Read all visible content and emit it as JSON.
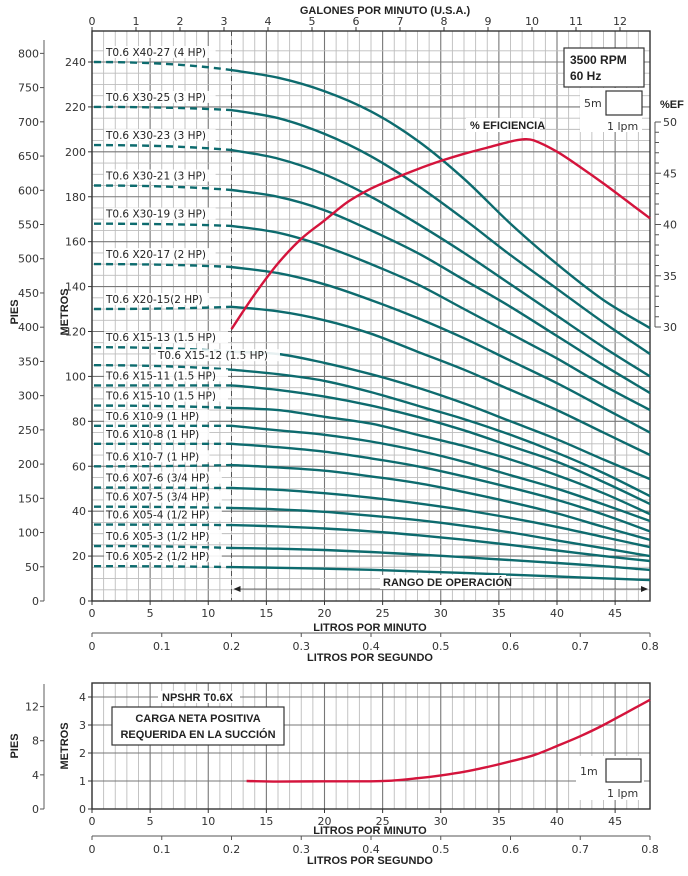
{
  "chart_data": [
    {
      "type": "line",
      "title": "",
      "top_axis": {
        "label": "GALONES POR MINUTO (U.S.A.)",
        "ticks": [
          "0",
          "1",
          "2",
          "3",
          "4",
          "5",
          "6",
          "7",
          "8",
          "9",
          "10",
          "11",
          "12"
        ],
        "range": [
          0,
          12.68
        ]
      },
      "xlabel": "LITROS POR MINUTO",
      "xticks": [
        "0",
        "5",
        "10",
        "15",
        "20",
        "25",
        "30",
        "35",
        "40",
        "45"
      ],
      "xlim": [
        0,
        48
      ],
      "secondary_xlabel": "LITROS POR SEGUNDO",
      "secondary_xticks": [
        "0",
        "0.1",
        "0.2",
        "0.3",
        "0.4",
        "0.5",
        "0.6",
        "0.7",
        "0.8"
      ],
      "ylabel": "METROS",
      "yticks": [
        "0",
        "20",
        "40",
        "60",
        "80",
        "100",
        "120",
        "140",
        "160",
        "180",
        "200",
        "220",
        "240"
      ],
      "ylim": [
        0,
        248
      ],
      "ylabel_feet": "PIES",
      "yticks_feet": [
        "0",
        "50",
        "100",
        "150",
        "200",
        "250",
        "300",
        "350",
        "400",
        "450",
        "500",
        "550",
        "600",
        "650",
        "700",
        "750",
        "800"
      ],
      "y2label": "%EF",
      "y2ticks": [
        "30",
        "35",
        "40",
        "45",
        "50"
      ],
      "y2lim": [
        30,
        50
      ],
      "grid": true,
      "info_box": {
        "line1": "3500 RPM",
        "line2": "60 Hz"
      },
      "scale_box": {
        "vertical": "5m",
        "horizontal": "1 lpm"
      },
      "operating_range_label": "RANGO DE OPERACIÓN",
      "operating_range": [
        12,
        48
      ],
      "efficiency_label": "% EFICIENCIA",
      "efficiency": {
        "x": [
          12,
          14,
          16,
          18,
          20,
          22,
          24,
          26,
          28,
          30,
          32,
          34,
          36,
          37,
          38,
          40,
          42,
          44,
          46,
          48
        ],
        "values": [
          29.8,
          33.2,
          36.2,
          38.6,
          40.4,
          42.2,
          43.5,
          44.5,
          45.4,
          46.2,
          46.9,
          47.5,
          48.1,
          48.3,
          48.2,
          47.1,
          45.6,
          44.0,
          42.3,
          40.6
        ]
      },
      "series": [
        {
          "name": "T0.6 X40-27 (4 HP)",
          "shutoff": 240,
          "x": [
            12,
            16,
            20,
            24,
            28,
            32,
            36,
            40,
            44,
            48
          ],
          "values": [
            236.4,
            233,
            227,
            218,
            205,
            188,
            168,
            150,
            134,
            121.5
          ]
        },
        {
          "name": "T0.6 X30-25 (3 HP)",
          "shutoff": 220,
          "x": [
            12,
            16,
            20,
            24,
            28,
            32,
            36,
            40,
            44,
            48
          ],
          "values": [
            218.6,
            215,
            208,
            198,
            185,
            170,
            154,
            139,
            124,
            110
          ]
        },
        {
          "name": "T0.6 X30-23 (3 HP)",
          "shutoff": 203,
          "x": [
            12,
            16,
            20,
            24,
            28,
            32,
            36,
            40,
            44,
            48
          ],
          "values": [
            200.8,
            197,
            190,
            180,
            168,
            155,
            141,
            127,
            113,
            100
          ]
        },
        {
          "name": "T0.6 X30-21 (3 HP)",
          "shutoff": 185,
          "x": [
            12,
            16,
            20,
            24,
            28,
            32,
            36,
            40,
            44,
            48
          ],
          "values": [
            183,
            180,
            174,
            165,
            155,
            143,
            131,
            118,
            105,
            92.6
          ]
        },
        {
          "name": "T0.6 X30-19 (3 HP)",
          "shutoff": 168,
          "x": [
            12,
            16,
            20,
            24,
            28,
            32,
            36,
            40,
            44,
            48
          ],
          "values": [
            167,
            164,
            158,
            150,
            141,
            130,
            119,
            108,
            96,
            85
          ]
        },
        {
          "name": "T0.6 X20-17 (2 HP)",
          "shutoff": 150,
          "x": [
            12,
            16,
            20,
            24,
            28,
            32,
            36,
            40,
            44,
            48
          ],
          "values": [
            148.7,
            146,
            141,
            134,
            126,
            117,
            107,
            97,
            86,
            75
          ]
        },
        {
          "name": "T0.6 X20-15(2 HP)",
          "shutoff": 130,
          "x": [
            12,
            16,
            20,
            24,
            28,
            32,
            36,
            40,
            44,
            48
          ],
          "values": [
            131,
            129,
            125,
            119,
            111,
            103,
            94,
            85,
            75,
            65
          ]
        },
        {
          "name": "T0.6 X15-13 (1.5 HP)",
          "shutoff": 113,
          "x": [
            12,
            16,
            20,
            24,
            28,
            32,
            36,
            40,
            44,
            48
          ],
          "values": [
            111,
            110,
            106,
            101,
            95,
            88,
            80,
            72,
            63,
            54.3
          ]
        },
        {
          "name": "T0.6 X15-12 (1.5 HP)",
          "shutoff": 105,
          "x": [
            12,
            16,
            20,
            24,
            28,
            32,
            36,
            40,
            44,
            48
          ],
          "values": [
            103,
            101,
            98,
            93,
            87,
            81,
            74,
            66,
            57,
            46.7
          ]
        },
        {
          "name": "T0.6 X15-11 (1.5 HP)",
          "shutoff": 96,
          "x": [
            12,
            16,
            20,
            24,
            28,
            32,
            36,
            40,
            44,
            48
          ],
          "values": [
            96,
            94,
            91,
            87,
            82,
            76,
            69,
            62,
            53,
            43.2
          ]
        },
        {
          "name": "T0.6 X15-10 (1.5 HP)",
          "shutoff": 87,
          "x": [
            12,
            16,
            20,
            24,
            28,
            32,
            36,
            40,
            44,
            48
          ],
          "values": [
            86,
            85,
            82,
            79,
            74,
            69,
            63,
            56,
            48,
            38.7
          ]
        },
        {
          "name": "T0.6 X10-9 (1 HP)",
          "shutoff": 78,
          "x": [
            12,
            16,
            20,
            24,
            28,
            32,
            36,
            40,
            44,
            48
          ],
          "values": [
            78,
            76,
            74,
            71,
            67,
            62,
            56,
            50,
            43,
            35.6
          ]
        },
        {
          "name": "T0.6 X10-8 (1 HP)",
          "shutoff": 70,
          "x": [
            12,
            16,
            20,
            24,
            28,
            32,
            36,
            40,
            44,
            48
          ],
          "values": [
            70,
            68.5,
            66.5,
            63.5,
            60,
            55.5,
            50.5,
            45,
            38.5,
            31
          ]
        },
        {
          "name": "T0.6 X10-7 (1 HP)",
          "shutoff": 60,
          "x": [
            12,
            16,
            20,
            24,
            28,
            32,
            36,
            40,
            44,
            48
          ],
          "values": [
            60.5,
            59.5,
            58,
            55.5,
            52.5,
            48.5,
            44,
            39,
            33,
            27.2
          ]
        },
        {
          "name": "T0.6 X07-6 (3/4 HP)",
          "shutoff": 50.5,
          "x": [
            12,
            16,
            20,
            24,
            28,
            32,
            36,
            40,
            44,
            48
          ],
          "values": [
            50.3,
            49.5,
            48,
            46,
            43.5,
            40.5,
            37,
            33,
            28.5,
            24
          ]
        },
        {
          "name": "T0.6 X07-5 (3/4 HP)",
          "shutoff": 42,
          "x": [
            12,
            16,
            20,
            24,
            28,
            32,
            36,
            40,
            44,
            48
          ],
          "values": [
            41.4,
            40.8,
            39.7,
            38,
            36,
            33.5,
            30.5,
            27,
            23.5,
            20
          ]
        },
        {
          "name": "T0.6 X05-4 (1/2 HP)",
          "shutoff": 34,
          "x": [
            12,
            16,
            20,
            24,
            28,
            32,
            36,
            40,
            44,
            48
          ],
          "values": [
            33.8,
            33.2,
            32.3,
            31,
            29.3,
            27.3,
            25,
            22.5,
            20,
            17.8
          ]
        },
        {
          "name": "T0.6 X05-3 (1/2 HP)",
          "shutoff": 24.5,
          "x": [
            12,
            16,
            20,
            24,
            28,
            32,
            36,
            40,
            44,
            48
          ],
          "values": [
            23.6,
            23.3,
            22.7,
            21.8,
            20.7,
            19.5,
            18.2,
            16.9,
            15.5,
            13.8
          ]
        },
        {
          "name": "T0.6 X05-2 (1/2 HP)",
          "shutoff": 15.5,
          "x": [
            12,
            16,
            20,
            24,
            28,
            32,
            36,
            40,
            44,
            48
          ],
          "values": [
            15.1,
            14.8,
            14.4,
            13.9,
            13.2,
            12.5,
            11.7,
            10.9,
            10.1,
            9.3
          ]
        }
      ]
    },
    {
      "type": "line",
      "title": "NPSHR T0.6X",
      "annotation": {
        "line1": "CARGA NETA POSITIVA",
        "line2": "REQUERIDA EN LA SUCCIÓN"
      },
      "xlabel": "LITROS POR MINUTO",
      "xticks": [
        "0",
        "5",
        "10",
        "15",
        "20",
        "25",
        "30",
        "35",
        "40",
        "45"
      ],
      "xlim": [
        0,
        48
      ],
      "secondary_xlabel": "LITROS POR SEGUNDO",
      "secondary_xticks": [
        "0",
        "0.1",
        "0.2",
        "0.3",
        "0.4",
        "0.5",
        "0.6",
        "0.7",
        "0.8"
      ],
      "ylabel": "METROS",
      "yticks": [
        "0",
        "1",
        "2",
        "3",
        "4"
      ],
      "ylim": [
        0,
        4.5
      ],
      "ylabel_feet": "PIES",
      "yticks_feet": [
        "0",
        "4",
        "8",
        "12"
      ],
      "grid": true,
      "scale_box": {
        "vertical": "1m",
        "horizontal": "1 lpm"
      },
      "series": [
        {
          "name": "NPSHR",
          "x": [
            13.3,
            16,
            20,
            24,
            26,
            28,
            30,
            32,
            34,
            36,
            38,
            40,
            42,
            44,
            46,
            48
          ],
          "values": [
            1.0,
            0.98,
            0.99,
            0.99,
            1.02,
            1.1,
            1.2,
            1.33,
            1.5,
            1.7,
            1.92,
            2.25,
            2.6,
            3.0,
            3.45,
            3.9
          ]
        }
      ]
    }
  ],
  "colors": {
    "pump_curve": "#0d6b6e",
    "efficiency": "#d4143c",
    "npshr": "#d4143c",
    "grid_major": "#777777",
    "grid_minor": "#bdbdbd"
  }
}
